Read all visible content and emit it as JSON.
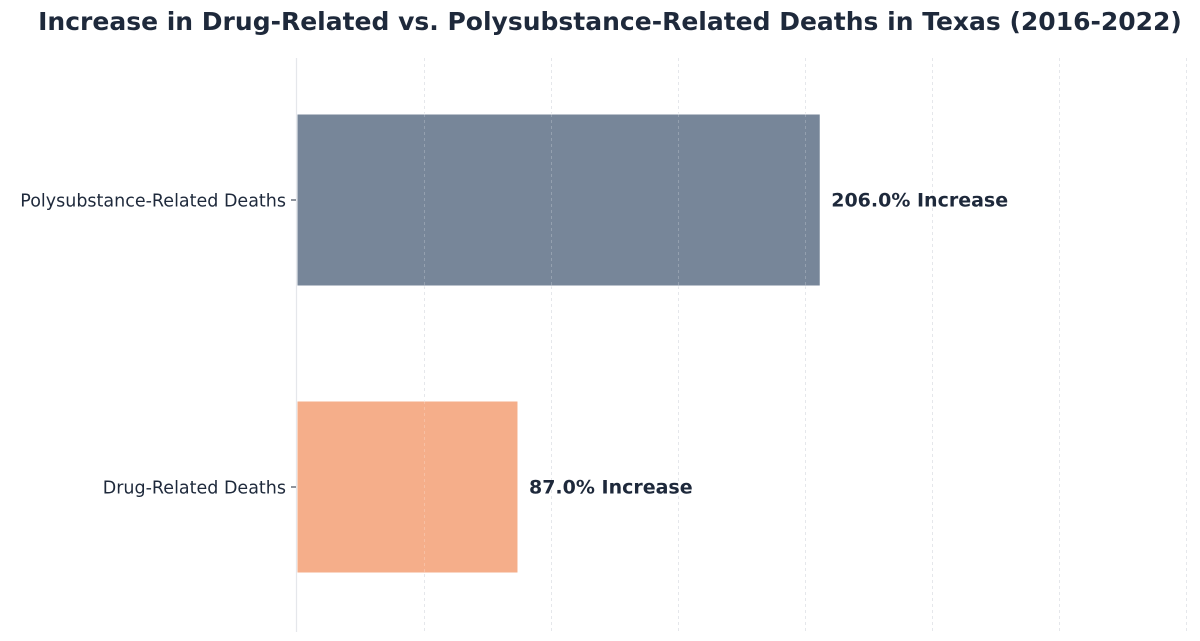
{
  "chart_data": {
    "type": "bar",
    "orientation": "horizontal",
    "title": "Increase in Drug-Related vs. Polysubstance-Related Deaths in Texas (2016-2022)",
    "xlabel": "",
    "ylabel": "",
    "categories": [
      "Polysubstance-Related Deaths",
      "Drug-Related Deaths"
    ],
    "values": [
      206.0,
      87.0
    ],
    "value_labels": [
      "206.0% Increase",
      "87.0% Increase"
    ],
    "colors": [
      "#778699",
      "#f5ae8a"
    ],
    "xlim": [
      0,
      350
    ],
    "x_gridlines": [
      0,
      50,
      100,
      150,
      200,
      250,
      300,
      350
    ],
    "grid": true,
    "legend": "none"
  }
}
